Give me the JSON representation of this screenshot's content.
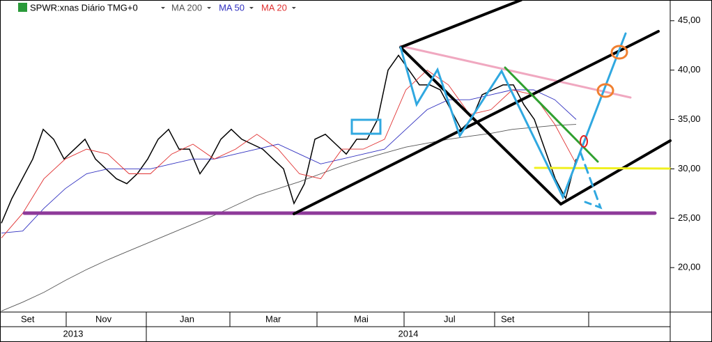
{
  "chart_data": {
    "type": "line",
    "title": "SPWR:xnas Diário TMG+0",
    "series": [
      {
        "name": "SPWR",
        "color": "#000000",
        "values": [
          24.5,
          27,
          29,
          31,
          34,
          33,
          31,
          32,
          33,
          31,
          30,
          29,
          28.5,
          29.5,
          31,
          33,
          34,
          32,
          32,
          29.5,
          31,
          33,
          34,
          33,
          32.5,
          32,
          31,
          30,
          26.5,
          28.5,
          33,
          33.5,
          32.5,
          31.5,
          33,
          33,
          35,
          40,
          41.5,
          40,
          38.5,
          38.5,
          38,
          36,
          34,
          35,
          37.5,
          38,
          38.5,
          38.5,
          36.5,
          35,
          32,
          29,
          27,
          31
        ]
      },
      {
        "name": "MA 200",
        "color": "#555555",
        "values": [
          15.6,
          16.5,
          17.5,
          18.7,
          19.8,
          20.8,
          21.7,
          22.6,
          23.5,
          24.4,
          25.3,
          26.3,
          27.3,
          28,
          28.7,
          29.5,
          30.3,
          31,
          31.6,
          32.2,
          32.6,
          33,
          33.3,
          33.6,
          34,
          34.2,
          34.4,
          34.5
        ]
      },
      {
        "name": "MA 50",
        "color": "#3030c0",
        "values": [
          23.5,
          23.7,
          26,
          28,
          29.5,
          30,
          30,
          30,
          30.5,
          31,
          31,
          31.5,
          32,
          32.5,
          31.5,
          30.5,
          31,
          31.5,
          32,
          34,
          36,
          37,
          37,
          37.5,
          38,
          38,
          37,
          35
        ]
      },
      {
        "name": "MA 20",
        "color": "#e03030",
        "values": [
          23,
          25.5,
          29,
          31,
          32,
          31.5,
          29.5,
          29.5,
          31.5,
          32.5,
          31,
          32,
          33.5,
          32,
          29.5,
          29,
          32,
          32,
          33,
          38,
          40,
          38.5,
          35.5,
          36,
          38,
          37.5,
          34.5,
          30.5
        ]
      }
    ],
    "months": [
      "Set",
      "Nov",
      "Jan",
      "Mar",
      "Mai",
      "Jul",
      "Set"
    ],
    "years": [
      "2013",
      "2014"
    ],
    "ylim": [
      15.5,
      47.1
    ],
    "yticks": [
      {
        "value": 20,
        "label": "20,00"
      },
      {
        "value": 25,
        "label": "25,00"
      },
      {
        "value": 30,
        "label": "30,00"
      },
      {
        "value": 35,
        "label": "35,00"
      },
      {
        "value": 40,
        "label": "40,00"
      },
      {
        "value": 45,
        "label": "45,00"
      }
    ]
  }
}
